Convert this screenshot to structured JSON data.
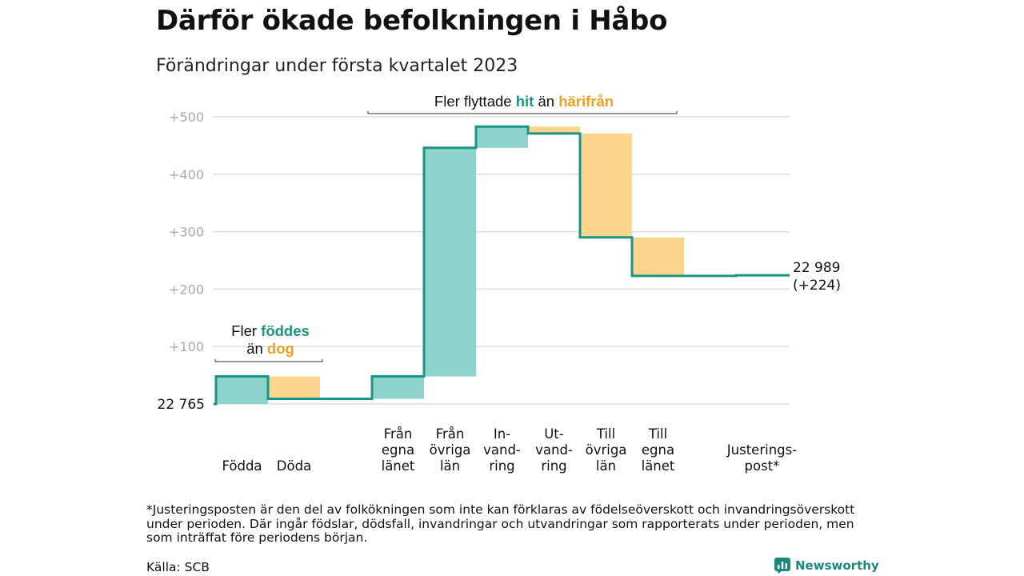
{
  "header": {
    "title": "Därför ökade befolkningen i Håbo",
    "subtitle": "Förändringar under första kvartalet 2023"
  },
  "footer": {
    "footnote": "*Justeringsposten är den del av folkökningen som inte kan förklaras av födelseöverskott och invandringsöverskott under perioden. Där ingår födslar, dödsfall, invandringar och utvandringar som rapporterats under perioden, men som inträffat före periodens början.",
    "source": "Källa: SCB",
    "brand": "Newsworthy"
  },
  "colors": {
    "increase": "#8dd5cc",
    "decrease": "#fbd58e",
    "line": "#1a9484",
    "accent_hit": "#1a9484",
    "accent_harifran": "#f0a020",
    "grid": "#dddddd",
    "tick": "#aaaaaa"
  },
  "chart_data": {
    "type": "waterfall",
    "start_value": 22765,
    "start_label": "22 765",
    "end_value": 22989,
    "end_label_line1": "22 989",
    "end_label_line2": "(+224)",
    "y_ticks": [
      {
        "value": 100,
        "label": "+100"
      },
      {
        "value": 200,
        "label": "+200"
      },
      {
        "value": 300,
        "label": "+300"
      },
      {
        "value": 400,
        "label": "+400"
      },
      {
        "value": 500,
        "label": "+500"
      }
    ],
    "ylim": [
      0,
      500
    ],
    "categories": [
      {
        "label": [
          "Födda"
        ],
        "change": 48,
        "kind": "increase"
      },
      {
        "label": [
          "Döda"
        ],
        "change": -39,
        "kind": "decrease"
      },
      {
        "label": [],
        "change": 0,
        "kind": "none"
      },
      {
        "label": [
          "Från",
          "egna",
          "länet"
        ],
        "change": 39,
        "kind": "increase"
      },
      {
        "label": [
          "Från",
          "övriga",
          "län"
        ],
        "change": 398,
        "kind": "increase"
      },
      {
        "label": [
          "In-",
          "vand-",
          "ring"
        ],
        "change": 37,
        "kind": "increase"
      },
      {
        "label": [
          "Ut-",
          "vand-",
          "ring"
        ],
        "change": -12,
        "kind": "decrease"
      },
      {
        "label": [
          "Till",
          "övriga",
          "län"
        ],
        "change": -181,
        "kind": "decrease"
      },
      {
        "label": [
          "Till",
          "egna",
          "länet"
        ],
        "change": -67,
        "kind": "decrease"
      },
      {
        "label": [],
        "change": 0,
        "kind": "none"
      },
      {
        "label": [
          "Justerings-",
          "post*"
        ],
        "change": 1,
        "kind": "increase"
      }
    ],
    "annotations": [
      {
        "id": "births",
        "line1": [
          {
            "text": "Fler ",
            "style": "normal"
          },
          {
            "text": "föddes",
            "style": "hit"
          }
        ],
        "line2": [
          {
            "text": "än ",
            "style": "normal"
          },
          {
            "text": "dog",
            "style": "harifran"
          }
        ],
        "span": [
          0,
          1
        ]
      },
      {
        "id": "migration",
        "line1": [
          {
            "text": "Fler flyttade ",
            "style": "normal"
          },
          {
            "text": "hit",
            "style": "hit"
          },
          {
            "text": " än ",
            "style": "normal"
          },
          {
            "text": "härifrån",
            "style": "harifran"
          }
        ],
        "span": [
          3,
          8
        ]
      }
    ]
  }
}
